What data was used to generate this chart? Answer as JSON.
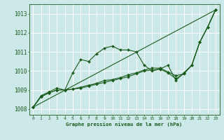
{
  "title": "Graphe pression niveau de la mer (hPa)",
  "bg_color": "#cce8e8",
  "grid_color": "#ffffff",
  "line_color": "#1a5c1a",
  "xlim": [
    -0.5,
    23.5
  ],
  "ylim": [
    1007.7,
    1013.5
  ],
  "yticks": [
    1008,
    1009,
    1010,
    1011,
    1012,
    1013
  ],
  "xticks": [
    0,
    1,
    2,
    3,
    4,
    5,
    6,
    7,
    8,
    9,
    10,
    11,
    12,
    13,
    14,
    15,
    16,
    17,
    18,
    19,
    20,
    21,
    22,
    23
  ],
  "series": [
    [
      1008.1,
      1008.7,
      1008.9,
      1009.1,
      1009.0,
      1009.9,
      1010.6,
      1010.5,
      1010.9,
      1011.2,
      1011.3,
      1011.1,
      1011.1,
      1011.0,
      1010.3,
      1010.0,
      1010.1,
      1010.3,
      1009.5,
      1009.9,
      1010.3,
      1011.5,
      1012.3,
      1013.2
    ],
    [
      1008.1,
      1008.65,
      1008.85,
      1009.0,
      1009.0,
      1009.05,
      1009.1,
      1009.2,
      1009.3,
      1009.4,
      1009.5,
      1009.6,
      1009.7,
      1009.85,
      1010.0,
      1010.05,
      1010.1,
      1009.9,
      1009.6,
      1009.85,
      1010.3,
      1011.5,
      1012.3,
      1013.2
    ],
    [
      1008.1,
      1008.65,
      1008.85,
      1009.0,
      1009.0,
      1009.05,
      1009.15,
      1009.25,
      1009.35,
      1009.5,
      1009.55,
      1009.65,
      1009.8,
      1009.9,
      1010.05,
      1010.15,
      1010.15,
      1009.95,
      1009.75,
      1009.85,
      1010.3,
      1011.5,
      1012.3,
      1013.2
    ],
    [
      1008.1,
      null,
      null,
      null,
      null,
      null,
      null,
      null,
      null,
      null,
      null,
      null,
      null,
      null,
      null,
      null,
      null,
      null,
      null,
      null,
      null,
      null,
      null,
      1013.2
    ]
  ]
}
